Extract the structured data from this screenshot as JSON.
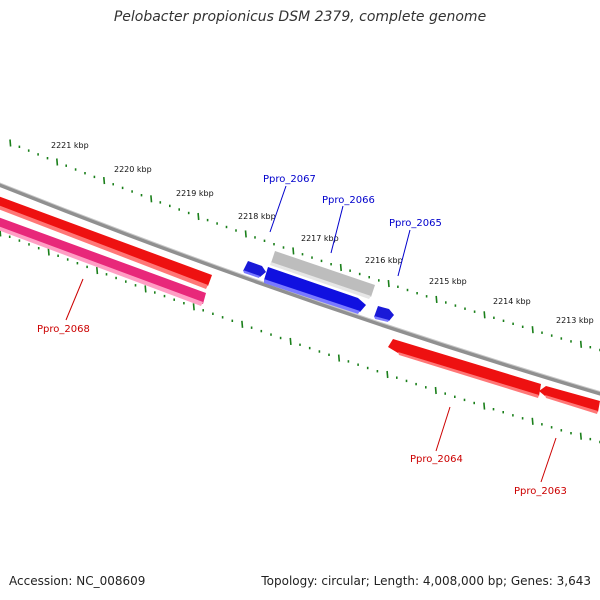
{
  "title": "Pelobacter propionicus DSM 2379, complete genome",
  "footer": {
    "accession": "Accession: NC_008609",
    "stats": "Topology: circular; Length: 4,008,000 bp; Genes: 3,643"
  },
  "ruler": {
    "unit_suffix": " kbp",
    "labels": [
      "2221 kbp",
      "2220 kbp",
      "2219 kbp",
      "2218 kbp",
      "2217 kbp",
      "2216 kbp",
      "2215 kbp",
      "2214 kbp",
      "2213 kbp"
    ]
  },
  "colors": {
    "backbone": "#8a8a8a",
    "tick": "#1a7f1a",
    "gene_red": "#ee1111",
    "gene_pink": "#e8287a",
    "gene_blue": "#1010e0",
    "gene_gray": "#b8b8b8",
    "label_blue": "#0000cc",
    "label_red": "#cc0000"
  },
  "genes": [
    {
      "id": "Ppro_2063",
      "strand": "-",
      "color": "red"
    },
    {
      "id": "Ppro_2064",
      "strand": "-",
      "color": "red"
    },
    {
      "id": "Ppro_2065",
      "strand": "+",
      "color": "blue"
    },
    {
      "id": "Ppro_2066",
      "strand": "+",
      "color": "blue"
    },
    {
      "id": "Ppro_2067",
      "strand": "+",
      "color": "blue"
    },
    {
      "id": "Ppro_2068",
      "strand": "-",
      "color": "pink"
    }
  ],
  "features": [
    {
      "kind": "gray-bar",
      "strand": "+",
      "color": "gray"
    },
    {
      "kind": "red-bar",
      "strand": "-",
      "color": "red"
    }
  ]
}
